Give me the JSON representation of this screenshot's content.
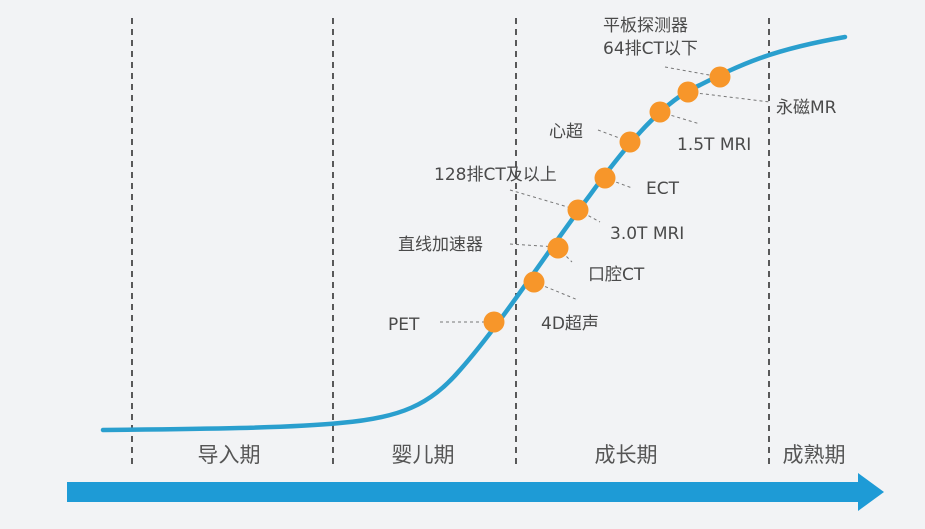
{
  "phases": [
    {
      "id": "intro",
      "label": "导入期"
    },
    {
      "id": "infant",
      "label": "婴儿期"
    },
    {
      "id": "growth",
      "label": "成长期"
    },
    {
      "id": "mature",
      "label": "成熟期"
    }
  ],
  "technologies": [
    {
      "id": "pet",
      "label": "PET"
    },
    {
      "id": "4d-ultrasound",
      "label": "4D超声"
    },
    {
      "id": "oral-ct",
      "label": "口腔CT"
    },
    {
      "id": "linear-accelerator",
      "label": "直线加速器"
    },
    {
      "id": "3t-mri",
      "label": "3.0T MRI"
    },
    {
      "id": "128-ct",
      "label": "128排CT及以上"
    },
    {
      "id": "ect",
      "label": "ECT"
    },
    {
      "id": "echocardiography",
      "label": "心超"
    },
    {
      "id": "15t-mri",
      "label": "1.5T MRI"
    },
    {
      "id": "permanent-mr",
      "label": "永磁MR"
    },
    {
      "id": "flat-panel-64ct",
      "label_lines": [
        "平板探测器",
        "64排CT以下"
      ]
    }
  ],
  "colors": {
    "curve": "#2a9fce",
    "arrow": "#1e9bd6",
    "marker": "#f7962a",
    "background": "#f2f3f5",
    "divider": "#333333",
    "text": "#4a4a4a"
  }
}
